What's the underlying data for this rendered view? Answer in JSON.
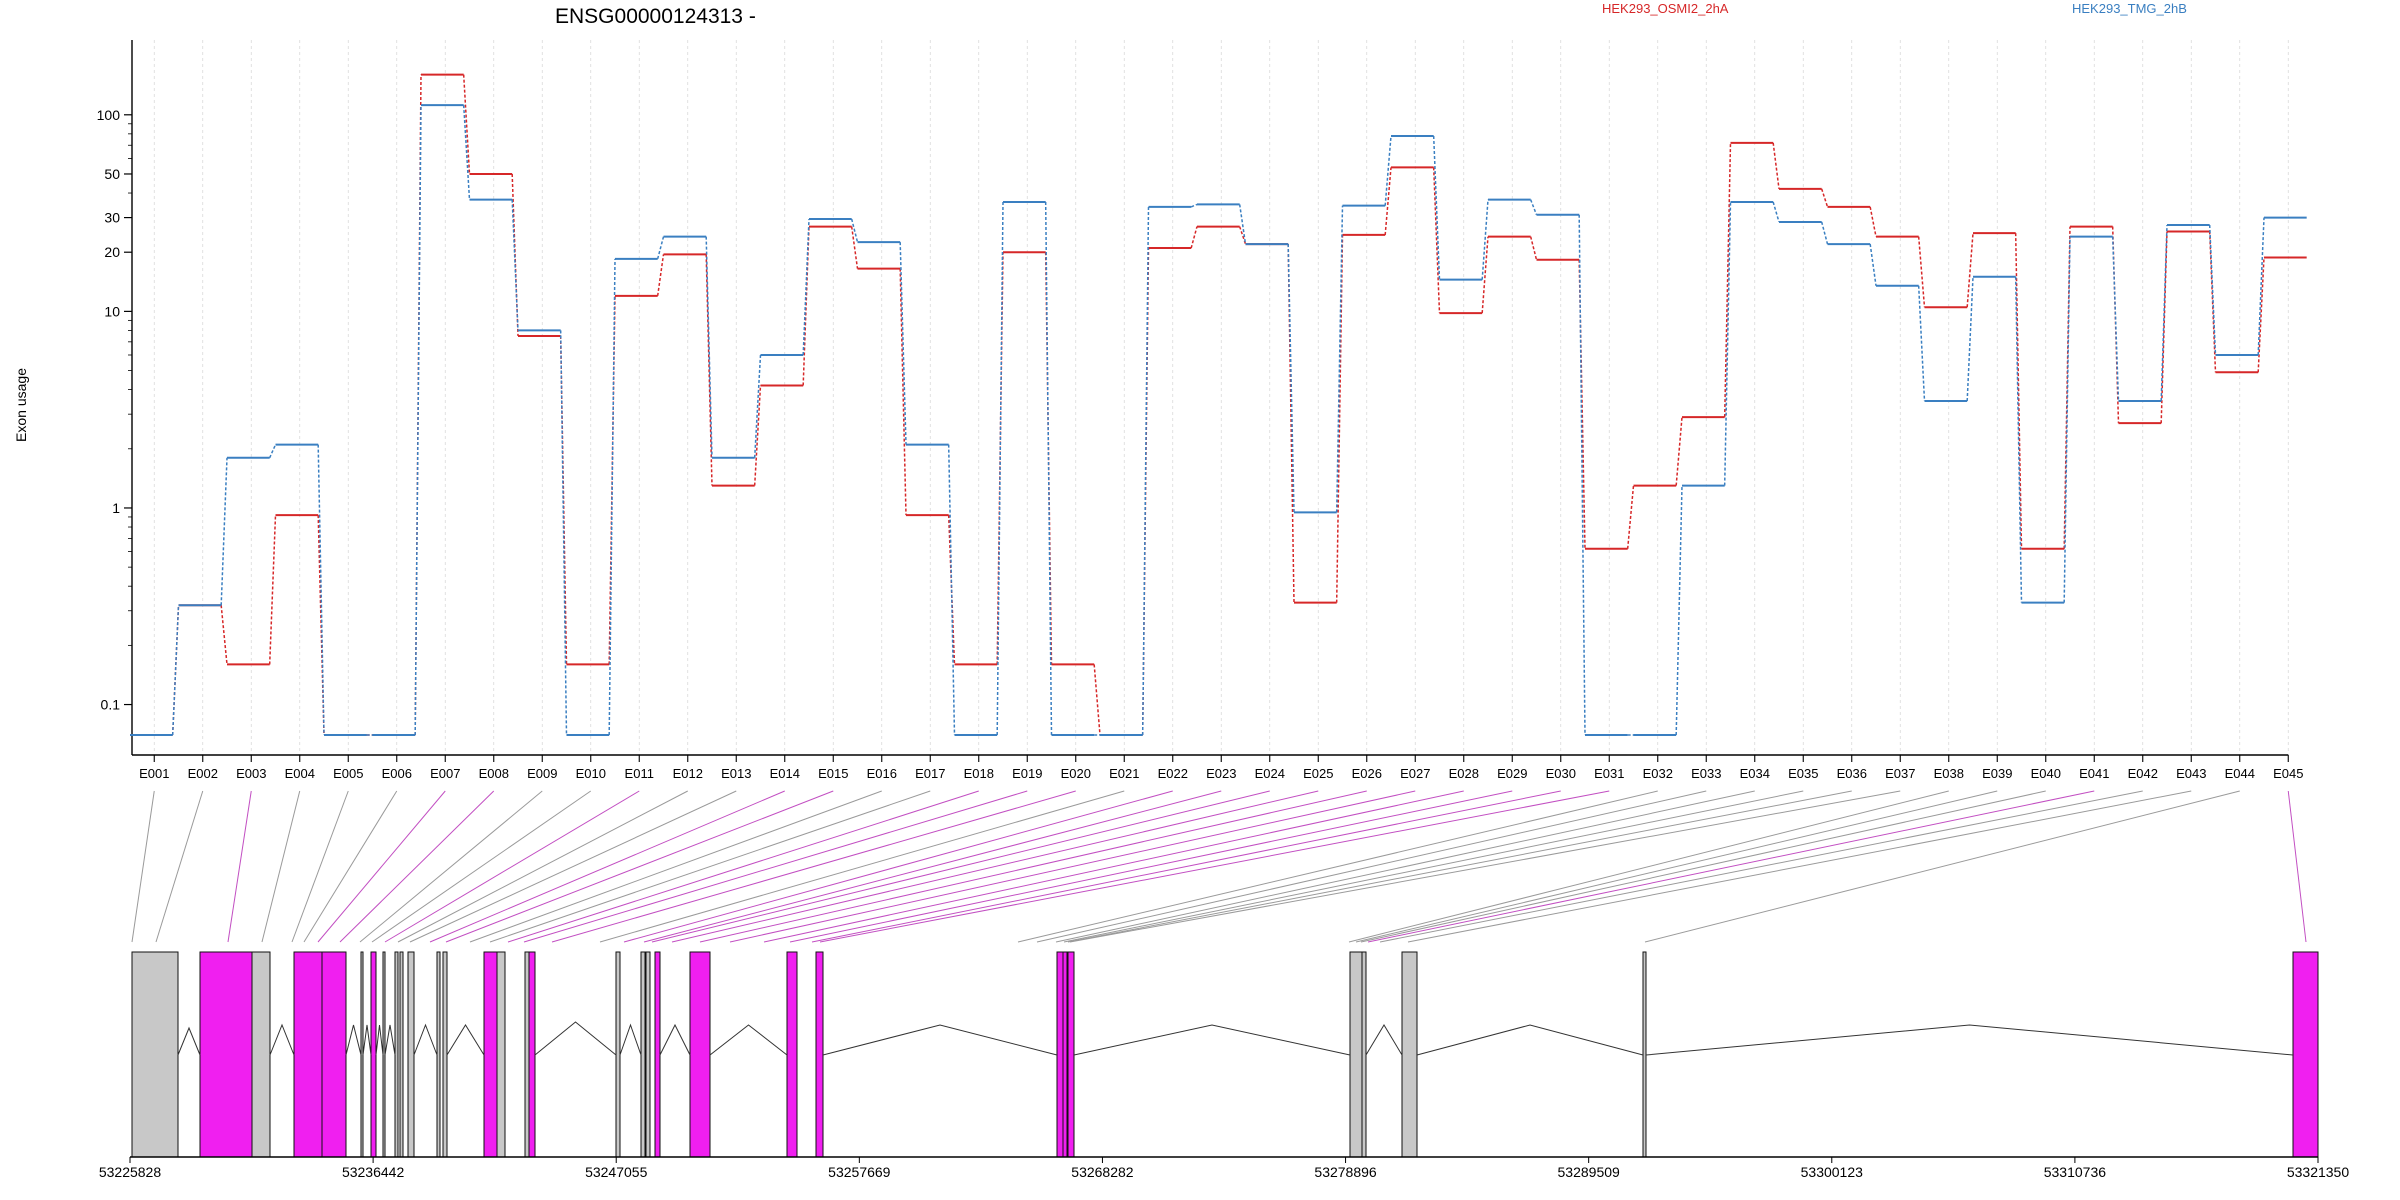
{
  "chart_data": {
    "type": "line",
    "title": "ENSG00000124313 -",
    "ylabel": "Exon usage",
    "yscale": "log",
    "ylim": [
      0.07,
      190
    ],
    "ytick_labels": [
      "0.1",
      "1",
      "10",
      "20",
      "30",
      "50",
      "100"
    ],
    "ytick_values": [
      0.1,
      1,
      10,
      20,
      30,
      50,
      100
    ],
    "categories": [
      "E001",
      "E002",
      "E003",
      "E004",
      "E005",
      "E006",
      "E007",
      "E008",
      "E009",
      "E010",
      "E011",
      "E012",
      "E013",
      "E014",
      "E015",
      "E016",
      "E017",
      "E018",
      "E019",
      "E020",
      "E021",
      "E022",
      "E023",
      "E024",
      "E025",
      "E026",
      "E027",
      "E028",
      "E029",
      "E030",
      "E031",
      "E032",
      "E033",
      "E034",
      "E035",
      "E036",
      "E037",
      "E038",
      "E039",
      "E040",
      "E041",
      "E042",
      "E043",
      "E044",
      "E045"
    ],
    "series": [
      {
        "name": "HEK293_OSMI2_2hA",
        "color": "#d62728",
        "values": [
          0.07,
          0.32,
          0.16,
          0.92,
          0.07,
          0.07,
          160,
          50,
          7.5,
          0.16,
          12,
          19.5,
          1.3,
          4.2,
          27,
          16.5,
          0.92,
          0.16,
          20,
          0.16,
          0.07,
          21,
          27,
          22,
          0.33,
          24.5,
          54,
          9.8,
          24,
          18.3,
          0.62,
          1.3,
          2.9,
          72,
          42,
          34,
          24,
          10.5,
          25,
          0.62,
          27,
          2.7,
          25.5,
          4.9,
          18.8
        ]
      },
      {
        "name": "HEK293_TMG_2hB",
        "color": "#3a7fc1",
        "values": [
          0.07,
          0.32,
          1.8,
          2.1,
          0.07,
          0.07,
          112,
          37,
          8,
          0.07,
          18.5,
          24,
          1.8,
          6,
          29.5,
          22.5,
          2.1,
          0.07,
          36,
          0.07,
          0.07,
          34,
          35,
          22,
          0.95,
          34.5,
          78,
          14.5,
          37,
          31,
          0.07,
          0.07,
          1.3,
          36,
          28.5,
          22,
          13.5,
          3.5,
          15,
          0.33,
          24,
          3.5,
          27.5,
          6,
          30
        ]
      }
    ],
    "gene_model": {
      "coordinate_labels": [
        "53225828",
        "53236442",
        "53247055",
        "53257669",
        "53268282",
        "53278896",
        "53289509",
        "53300123",
        "53310736",
        "53321350"
      ]
    }
  },
  "colors": {
    "highlight_exon": "#f01ff0",
    "plain_exon": "#c8c8c8",
    "axis": "#000000",
    "grid": "#d9d9d9"
  }
}
